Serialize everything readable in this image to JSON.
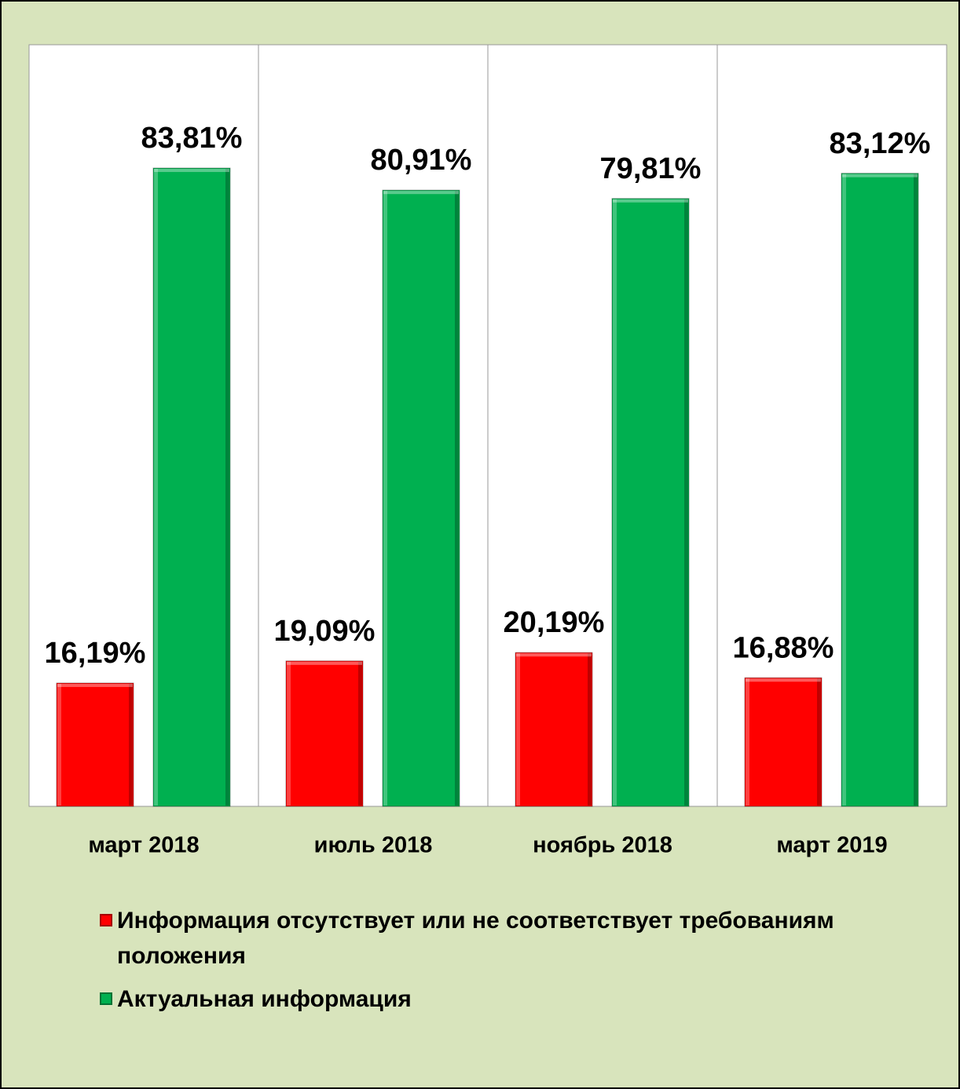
{
  "chart_data": {
    "type": "bar",
    "categories": [
      "март 2018",
      "июль 2018",
      "ноябрь 2018",
      "март 2019"
    ],
    "series": [
      {
        "name": "Информация отсутствует или не соответствует требованиям положения",
        "color": "#ff0000",
        "values": [
          16.19,
          19.09,
          20.19,
          16.88
        ],
        "value_labels": [
          "16,19%",
          "19,09%",
          "20,19%",
          "16,88%"
        ]
      },
      {
        "name": "Актуальная информация",
        "color": "#00b050",
        "values": [
          83.81,
          80.91,
          79.81,
          83.12
        ],
        "value_labels": [
          "83,81%",
          "80,91%",
          "79,81%",
          "83,12%"
        ]
      }
    ],
    "ylim": [
      0,
      100
    ]
  }
}
